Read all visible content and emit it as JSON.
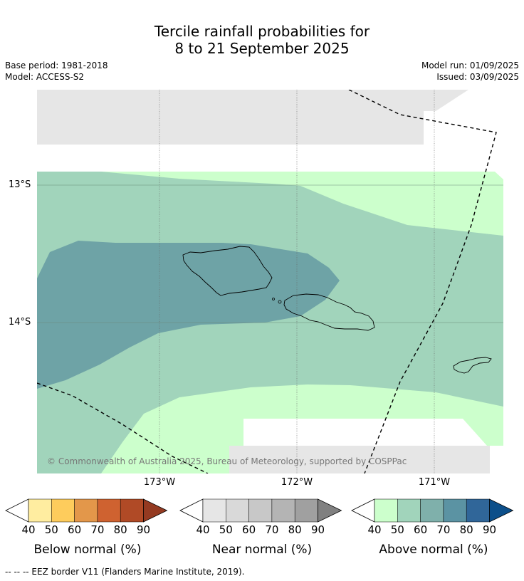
{
  "title_line1": "Tercile rainfall probabilities for",
  "title_line2": "8 to 21 September 2025",
  "base_period": "Base period: 1981-2018",
  "model": "Model: ACCESS-S2",
  "model_run": "Model run: 01/09/2025",
  "issued": "Issued: 03/09/2025",
  "lat_labels": [
    "13°S",
    "14°S"
  ],
  "lon_labels": [
    "173°W",
    "172°W",
    "171°W"
  ],
  "copyright": "© Commonwealth of Australia 2025, Bureau of Meteorology, supported by COSPPac",
  "colorbars": [
    {
      "title": "Below normal (%)",
      "ticks": [
        "40",
        "50",
        "60",
        "70",
        "80",
        "90"
      ],
      "colors": [
        "#ffeda0",
        "#fecc5c",
        "#e3974a",
        "#cf6230",
        "#b04a26",
        "#943a21"
      ]
    },
    {
      "title": "Near normal (%)",
      "ticks": [
        "40",
        "50",
        "60",
        "70",
        "80",
        "90"
      ],
      "colors": [
        "#e6e6e6",
        "#d9d9d9",
        "#c8c8c8",
        "#b4b4b4",
        "#a0a0a0",
        "#808080"
      ]
    },
    {
      "title": "Above normal (%)",
      "ticks": [
        "40",
        "50",
        "60",
        "70",
        "80",
        "90"
      ],
      "colors": [
        "#ccffcc",
        "#a1d4bb",
        "#7fb0ab",
        "#5b93a3",
        "#306699",
        "#0c4f8a"
      ]
    }
  ],
  "footer": "--  --  -- EEZ border V11 (Flanders Marine Institute, 2019).",
  "colors": {
    "land_outline": "#000000",
    "eez_border": "#000000",
    "grid": "#666666"
  }
}
